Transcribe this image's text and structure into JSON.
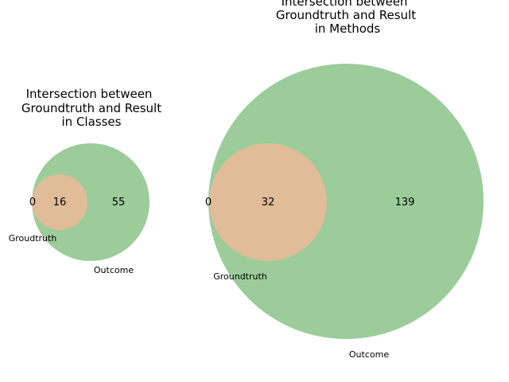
{
  "colors": {
    "outcome": "#9bcc9a",
    "groundtruth": "#e1bc98",
    "background": "#ffffff"
  },
  "venn_left": {
    "title_lines": [
      "Intersection between",
      "Groundtruth and Result",
      "in Classes"
    ],
    "groundtruth_only": "0",
    "intersection": "16",
    "outcome_only": "55",
    "groundtruth_label": "Groudtruth",
    "outcome_label": "Outcome"
  },
  "venn_right": {
    "title_lines": [
      "Intersection between",
      "Groundtruth and Result",
      "in Methods"
    ],
    "groundtruth_only": "0",
    "intersection": "32",
    "outcome_only": "139",
    "groundtruth_label": "Groundtruth",
    "outcome_label": "Outcome"
  }
}
